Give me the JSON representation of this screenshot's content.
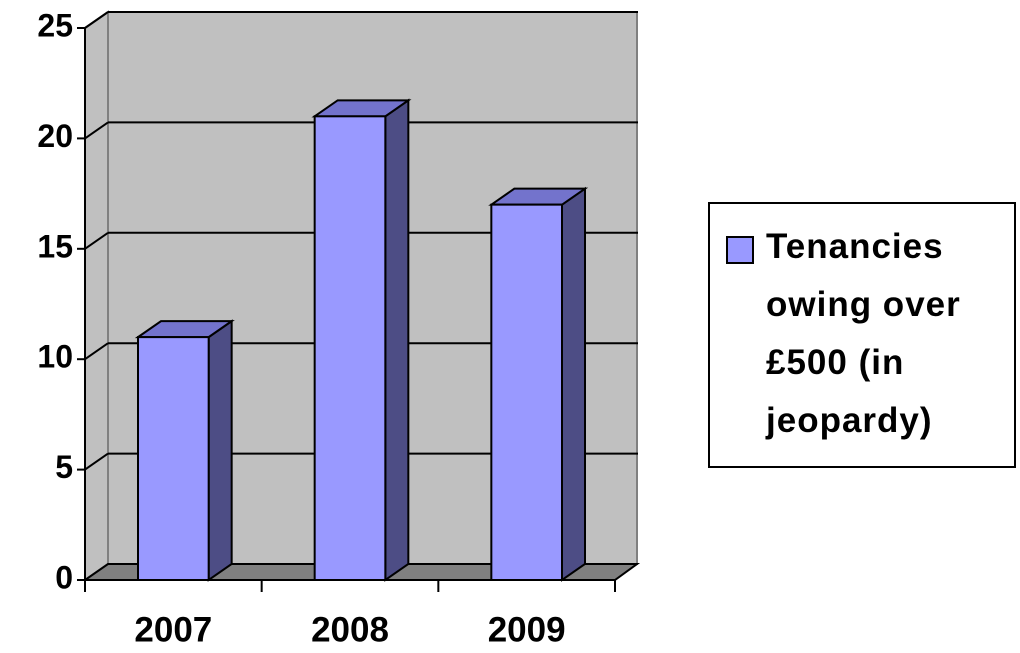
{
  "chart_data": {
    "type": "bar3d",
    "categories": [
      "2007",
      "2008",
      "2009"
    ],
    "series": [
      {
        "name": "Tenancies owing over £500 (in jeopardy)",
        "color": "#9999ff",
        "values": [
          11,
          21,
          17
        ]
      }
    ],
    "ylim": [
      0,
      25
    ],
    "yticks": [
      0,
      5,
      10,
      15,
      20,
      25
    ],
    "grid": true,
    "legend": "right"
  }
}
